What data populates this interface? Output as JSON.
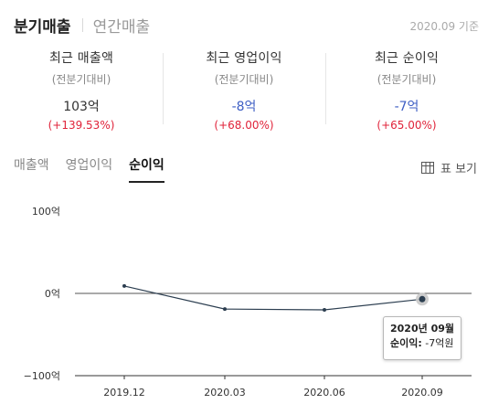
{
  "top_tabs": [
    {
      "label": "분기매출",
      "active": true
    },
    {
      "label": "연간매출",
      "active": false
    }
  ],
  "as_of": "2020.09 기준",
  "summary": [
    {
      "label": "최근 매출액",
      "sub": "(전분기대비)",
      "value": "103억",
      "change": "(+139.53%)",
      "value_color": "#333333"
    },
    {
      "label": "최근 영업이익",
      "sub": "(전분기대비)",
      "value": "-8억",
      "change": "(+68.00%)",
      "value_color": "#3d5ec4"
    },
    {
      "label": "최근 순이익",
      "sub": "(전분기대비)",
      "value": "-7억",
      "change": "(+65.00%)",
      "value_color": "#3d5ec4"
    }
  ],
  "metric_tabs": [
    {
      "label": "매출액",
      "active": false
    },
    {
      "label": "영업이익",
      "active": false
    },
    {
      "label": "순이익",
      "active": true
    }
  ],
  "table_view_label": "표 보기",
  "tooltip": {
    "title": "2020년 09월",
    "key": "순이익:",
    "value": "-7억원"
  },
  "chart_data": {
    "type": "line",
    "categories": [
      "2019.12",
      "2020.03",
      "2020.06",
      "2020.09"
    ],
    "series": [
      {
        "values": [
          9,
          -19,
          -20,
          -7
        ]
      }
    ],
    "ylim": [
      -100,
      100
    ],
    "yticks": [
      100,
      0,
      -100
    ],
    "ytick_labels": [
      "100억",
      "0억",
      "−100억"
    ],
    "highlight_index": 3,
    "line_color": "#2c3e50",
    "zero_line": true
  }
}
